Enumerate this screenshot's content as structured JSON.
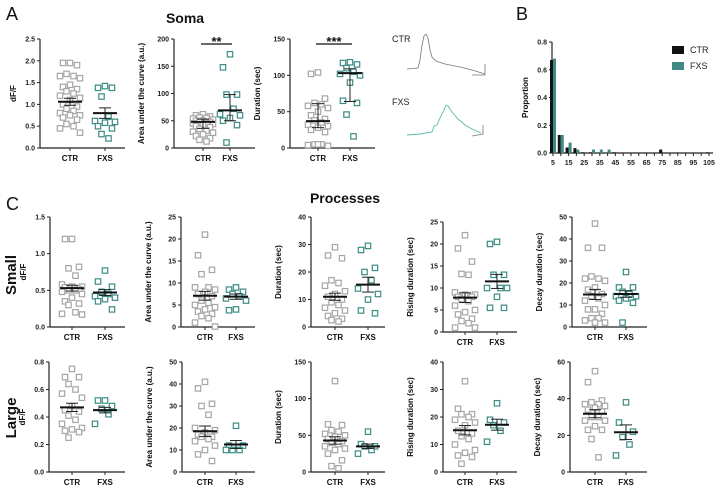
{
  "labels": {
    "panel_a": "A",
    "panel_b": "B",
    "panel_c": "C",
    "soma_title": "Soma",
    "processes_title": "Processes",
    "row_small": "Small",
    "row_large": "Large",
    "trace_ctr": "CTR",
    "trace_fxs": "FXS"
  },
  "colors": {
    "ctr": "#a6a6a6",
    "fxs": "#3a8c84",
    "ctr_bar": "#111111",
    "fxs_bar": "#3f8a85"
  },
  "chart_data": [
    {
      "id": "a1",
      "type": "scatter",
      "ylabel": "dF/F",
      "categories": [
        "CTR",
        "FXS"
      ],
      "ylim": [
        0,
        2.5
      ],
      "yticks": [
        "0.0",
        "0.5",
        "1.0",
        "1.5",
        "2.0",
        "2.5"
      ],
      "CTR": [
        1.95,
        1.95,
        1.9,
        1.7,
        1.65,
        1.65,
        1.6,
        1.45,
        1.4,
        1.35,
        1.3,
        1.25,
        1.2,
        1.15,
        1.1,
        1.0,
        0.95,
        0.9,
        0.85,
        0.8,
        0.75,
        0.75,
        0.7,
        0.65,
        0.55,
        0.5,
        0.45,
        0.35
      ],
      "FXS": [
        1.42,
        1.38,
        1.38,
        1.18,
        0.72,
        0.62,
        0.6,
        0.58,
        0.5,
        0.45,
        0.32,
        0.22
      ],
      "mean": [
        1.06,
        0.8
      ],
      "err_low": [
        0.98,
        0.68
      ],
      "err_high": [
        1.14,
        0.92
      ],
      "significance": ""
    },
    {
      "id": "a2",
      "type": "scatter",
      "ylabel": "Area under the curve (a.u.)",
      "categories": [
        "CTR",
        "FXS"
      ],
      "ylim": [
        0,
        200
      ],
      "yticks": [
        "0",
        "50",
        "100",
        "150",
        "200"
      ],
      "CTR": [
        62,
        60,
        58,
        56,
        55,
        54,
        52,
        50,
        50,
        48,
        48,
        46,
        45,
        44,
        42,
        40,
        38,
        35,
        32,
        30,
        28,
        25,
        22,
        18,
        15,
        12
      ],
      "FXS": [
        172,
        148,
        98,
        98,
        72,
        62,
        60,
        55,
        50,
        42,
        10
      ],
      "mean": [
        48,
        69
      ],
      "err_low": [
        36,
        50
      ],
      "err_high": [
        53,
        98
      ],
      "significance": "**"
    },
    {
      "id": "a3",
      "type": "scatter",
      "ylabel": "Duration (sec)",
      "categories": [
        "CTR",
        "FXS"
      ],
      "ylim": [
        0,
        150
      ],
      "yticks": [
        "0",
        "50",
        "100",
        "150"
      ],
      "CTR": [
        104,
        102,
        68,
        62,
        60,
        58,
        55,
        50,
        45,
        40,
        38,
        35,
        32,
        30,
        28,
        25,
        22,
        5,
        5,
        4,
        3,
        5
      ],
      "FXS": [
        118,
        117,
        115,
        110,
        105,
        102,
        100,
        90,
        65,
        62,
        46,
        16
      ],
      "mean": [
        37,
        103
      ],
      "err_low": [
        28,
        64
      ],
      "err_high": [
        61,
        109
      ],
      "significance": "***"
    },
    {
      "id": "b",
      "type": "bar",
      "ylabel": "Proportion",
      "ylim": [
        0,
        0.8
      ],
      "yticks": [
        "0.0",
        "0.2",
        "0.4",
        "0.6",
        "0.8"
      ],
      "categories": [
        5,
        10,
        15,
        20,
        25,
        30,
        35,
        40,
        45,
        50,
        55,
        60,
        65,
        70,
        75,
        80,
        85,
        90,
        95,
        100,
        105
      ],
      "xtick_labels": [
        "5",
        "15",
        "25",
        "35",
        "45",
        "55",
        "65",
        "75",
        "85",
        "95",
        "105"
      ],
      "series": [
        {
          "name": "CTR",
          "values": [
            0.67,
            0.13,
            0.04,
            0.035,
            0.005,
            0.005,
            0,
            0,
            0.005,
            0.003,
            0.003,
            0.003,
            0.003,
            0,
            0.025,
            0,
            0.003,
            0,
            0,
            0,
            0.005
          ]
        },
        {
          "name": "FXS",
          "values": [
            0.68,
            0.13,
            0.075,
            0.025,
            0,
            0.025,
            0.025,
            0.025,
            0,
            0,
            0,
            0,
            0,
            0,
            0,
            0,
            0,
            0,
            0,
            0,
            0
          ]
        }
      ],
      "legend": "top-right"
    },
    {
      "id": "c1",
      "type": "scatter",
      "ylabel": "dF/F",
      "categories": [
        "CTR",
        "FXS"
      ],
      "ylim": [
        0,
        1.5
      ],
      "yticks": [
        "0.0",
        "0.5",
        "1.0",
        "1.5"
      ],
      "CTR": [
        1.2,
        1.2,
        0.82,
        0.8,
        0.7,
        0.58,
        0.55,
        0.55,
        0.54,
        0.52,
        0.5,
        0.5,
        0.48,
        0.45,
        0.4,
        0.35,
        0.32,
        0.3,
        0.2,
        0.18,
        0.17
      ],
      "FXS": [
        0.77,
        0.62,
        0.55,
        0.48,
        0.45,
        0.42,
        0.4,
        0.38,
        0.35,
        0.24
      ],
      "mean": [
        0.53,
        0.47
      ],
      "err_low": [
        0.49,
        0.43
      ],
      "err_high": [
        0.57,
        0.51
      ],
      "significance": ""
    },
    {
      "id": "c2",
      "type": "scatter",
      "ylabel": "Area under the curve (a.u.)",
      "categories": [
        "CTR",
        "FXS"
      ],
      "ylim": [
        0,
        25
      ],
      "yticks": [
        "0",
        "5",
        "10",
        "15",
        "20",
        "25"
      ],
      "CTR": [
        21,
        16.3,
        13,
        12,
        9,
        9,
        8.5,
        8,
        7.5,
        7,
        6,
        5.5,
        5,
        4.5,
        4,
        3.5,
        3,
        2.5,
        2,
        1,
        0.1
      ],
      "FXS": [
        9,
        8.5,
        8,
        7.5,
        7,
        6.5,
        6,
        4,
        3.8
      ],
      "mean": [
        7.1,
        6.9
      ],
      "err_low": [
        6.1,
        6.3
      ],
      "err_high": [
        8.1,
        7.5
      ],
      "significance": ""
    },
    {
      "id": "c3",
      "type": "scatter",
      "ylabel": "Duration (sec)",
      "categories": [
        "CTR",
        "FXS"
      ],
      "ylim": [
        0,
        40
      ],
      "yticks": [
        "0",
        "10",
        "20",
        "30",
        "40"
      ],
      "CTR": [
        29,
        26,
        25,
        17,
        16,
        15,
        13,
        12,
        11,
        10,
        9,
        8,
        7,
        6,
        5,
        4,
        3,
        2.5,
        2
      ],
      "FXS": [
        29.5,
        28,
        21.5,
        20,
        17,
        14,
        12,
        10,
        6,
        5
      ],
      "mean": [
        11,
        15.4
      ],
      "err_low": [
        9.7,
        12.7
      ],
      "err_high": [
        12.3,
        18.1
      ],
      "significance": ""
    },
    {
      "id": "c4",
      "type": "scatter",
      "ylabel": "Rising duration (sec)",
      "categories": [
        "CTR",
        "FXS"
      ],
      "ylim": [
        0,
        25
      ],
      "yticks": [
        "0",
        "5",
        "10",
        "15",
        "20",
        "25"
      ],
      "CTR": [
        22,
        19,
        16,
        13.2,
        13,
        9,
        8.5,
        8.5,
        8,
        8,
        7.5,
        7,
        6,
        5,
        4.5,
        4,
        3,
        2.5,
        2,
        1,
        1
      ],
      "FXS": [
        20.5,
        20,
        13,
        13,
        10,
        10,
        10,
        8,
        5.5,
        5.5
      ],
      "mean": [
        7.8,
        11.5
      ],
      "err_low": [
        6.7,
        9.9
      ],
      "err_high": [
        8.9,
        13.1
      ],
      "significance": ""
    },
    {
      "id": "c5",
      "type": "scatter",
      "ylabel": "Decay duration (sec)",
      "categories": [
        "CTR",
        "FXS"
      ],
      "ylim": [
        0,
        50
      ],
      "yticks": [
        "0",
        "10",
        "20",
        "30",
        "40",
        "50"
      ],
      "CTR": [
        47,
        36,
        36,
        23,
        22,
        22,
        21,
        18,
        17,
        15,
        14,
        13,
        12,
        10,
        8,
        8,
        6,
        4,
        4,
        3,
        2,
        2
      ],
      "FXS": [
        25,
        18,
        18,
        16,
        15,
        14,
        14,
        13,
        12,
        11,
        2
      ],
      "mean": [
        14.8,
        15
      ],
      "err_low": [
        12.5,
        13.5
      ],
      "err_high": [
        17.1,
        16.5
      ],
      "significance": ""
    },
    {
      "id": "d1",
      "type": "scatter",
      "ylabel": "dF/F",
      "categories": [
        "CTR",
        "FXS"
      ],
      "ylim": [
        0,
        0.8
      ],
      "yticks": [
        "0.0",
        "0.2",
        "0.4",
        "0.6",
        "0.8"
      ],
      "CTR": [
        0.75,
        0.69,
        0.69,
        0.64,
        0.6,
        0.57,
        0.54,
        0.48,
        0.45,
        0.44,
        0.41,
        0.38,
        0.35,
        0.32,
        0.31,
        0.3,
        0.29,
        0.25
      ],
      "FXS": [
        0.52,
        0.52,
        0.48,
        0.46,
        0.42,
        0.35
      ],
      "mean": [
        0.47,
        0.45
      ],
      "err_low": [
        0.44,
        0.43
      ],
      "err_high": [
        0.5,
        0.47
      ],
      "significance": ""
    },
    {
      "id": "d2",
      "type": "scatter",
      "ylabel": "Area under the curve (a.u.)",
      "categories": [
        "CTR",
        "FXS"
      ],
      "ylim": [
        0,
        50
      ],
      "yticks": [
        "0",
        "10",
        "20",
        "30",
        "40",
        "50"
      ],
      "CTR": [
        41,
        38,
        31,
        30,
        26,
        20,
        19,
        18,
        17,
        16,
        16,
        15,
        14,
        12,
        10,
        8,
        5
      ],
      "FXS": [
        21,
        12,
        12,
        10,
        10,
        10
      ],
      "mean": [
        18.5,
        12.5
      ],
      "err_low": [
        16.1,
        10.7
      ],
      "err_high": [
        20.9,
        14.3
      ],
      "significance": ""
    },
    {
      "id": "d3",
      "type": "scatter",
      "ylabel": "Duration (sec)",
      "categories": [
        "CTR",
        "FXS"
      ],
      "ylim": [
        0,
        150
      ],
      "yticks": [
        "0",
        "50",
        "100",
        "150"
      ],
      "CTR": [
        124,
        65,
        64,
        57,
        55,
        52,
        50,
        48,
        45,
        42,
        40,
        38,
        35,
        32,
        30,
        25,
        16,
        8,
        5
      ],
      "FXS": [
        55,
        38,
        35,
        35,
        30,
        25
      ],
      "mean": [
        43,
        35
      ],
      "err_low": [
        38,
        32
      ],
      "err_high": [
        48,
        38
      ],
      "significance": ""
    },
    {
      "id": "d4",
      "type": "scatter",
      "ylabel": "Rising duration (sec)",
      "categories": [
        "CTR",
        "FXS"
      ],
      "ylim": [
        0,
        40
      ],
      "yticks": [
        "0",
        "10",
        "20",
        "30",
        "40"
      ],
      "CTR": [
        33,
        23,
        21,
        21,
        20,
        19,
        18,
        17,
        15,
        14,
        13,
        12,
        10,
        8,
        7,
        6,
        5.5,
        3
      ],
      "FXS": [
        25,
        19,
        18,
        17,
        15,
        11
      ],
      "mean": [
        15.2,
        17.2
      ],
      "err_low": [
        13.5,
        15.2
      ],
      "err_high": [
        16.9,
        19.2
      ],
      "significance": ""
    },
    {
      "id": "d5",
      "type": "scatter",
      "ylabel": "Decay duration (sec)",
      "categories": [
        "CTR",
        "FXS"
      ],
      "ylim": [
        0,
        60
      ],
      "yticks": [
        "0",
        "20",
        "40",
        "60"
      ],
      "CTR": [
        55,
        49,
        39,
        38,
        37,
        37,
        36,
        35,
        34,
        33,
        30,
        30,
        28,
        28,
        25,
        23,
        23,
        18,
        8
      ],
      "FXS": [
        38,
        27,
        22,
        19,
        15,
        9
      ],
      "mean": [
        31.8,
        21.7
      ],
      "err_low": [
        29.6,
        17.7
      ],
      "err_high": [
        34,
        25.7
      ],
      "significance": ""
    }
  ]
}
